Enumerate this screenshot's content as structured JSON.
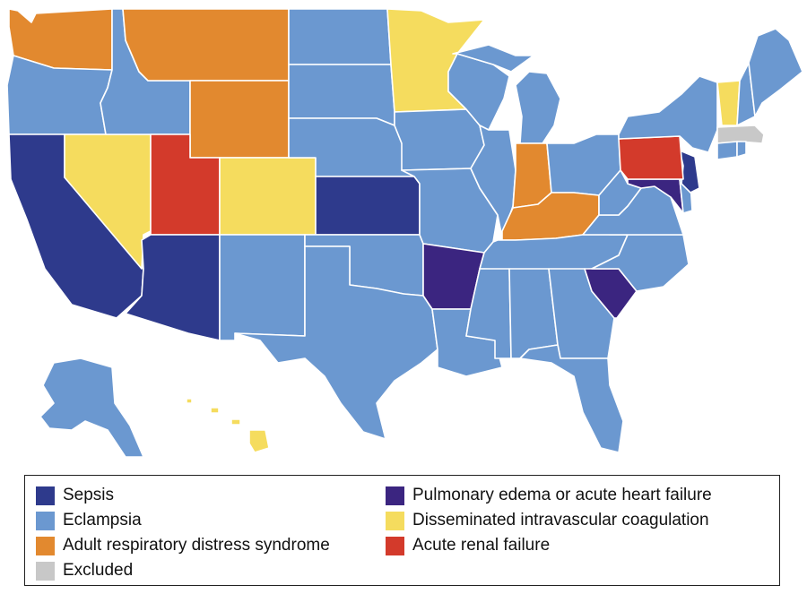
{
  "colors": {
    "sepsis": "#2e3a8c",
    "eclampsia": "#6b98d0",
    "ards": "#e2892f",
    "excluded": "#c8c8c8",
    "pulmonary": "#3b2580",
    "dic": "#f5dc5e",
    "renal": "#d33a2b"
  },
  "legend": [
    {
      "label": "Sepsis",
      "category": "sepsis"
    },
    {
      "label": "Eclampsia",
      "category": "eclampsia"
    },
    {
      "label": "Adult respiratory distress syndrome",
      "category": "ards"
    },
    {
      "label": "Excluded",
      "category": "excluded"
    },
    {
      "label": "Pulmonary edema or acute heart failure",
      "category": "pulmonary"
    },
    {
      "label": "Disseminated intravascular coagulation",
      "category": "dic"
    },
    {
      "label": "Acute renal failure",
      "category": "renal"
    }
  ],
  "states": {
    "WA": "ards",
    "OR": "eclampsia",
    "CA": "sepsis",
    "NV": "dic",
    "ID": "eclampsia",
    "MT": "ards",
    "WY": "ards",
    "UT": "renal",
    "AZ": "sepsis",
    "CO": "dic",
    "NM": "eclampsia",
    "ND": "eclampsia",
    "SD": "eclampsia",
    "NE": "eclampsia",
    "KS": "sepsis",
    "OK": "eclampsia",
    "TX": "eclampsia",
    "MN": "dic",
    "IA": "eclampsia",
    "MO": "eclampsia",
    "AR": "pulmonary",
    "LA": "eclampsia",
    "WI": "eclampsia",
    "IL": "eclampsia",
    "MI": "eclampsia",
    "IN": "ards",
    "OH": "eclampsia",
    "KY": "ards",
    "TN": "eclampsia",
    "MS": "eclampsia",
    "AL": "eclampsia",
    "GA": "eclampsia",
    "FL": "eclampsia",
    "SC": "pulmonary",
    "NC": "eclampsia",
    "VA": "eclampsia",
    "WV": "eclampsia",
    "MD": "pulmonary",
    "DE": "eclampsia",
    "NJ": "sepsis",
    "PA": "renal",
    "NY": "eclampsia",
    "CT": "eclampsia",
    "RI": "eclampsia",
    "MA": "excluded",
    "VT": "dic",
    "NH": "eclampsia",
    "ME": "eclampsia",
    "AK": "eclampsia",
    "HI": "dic"
  }
}
